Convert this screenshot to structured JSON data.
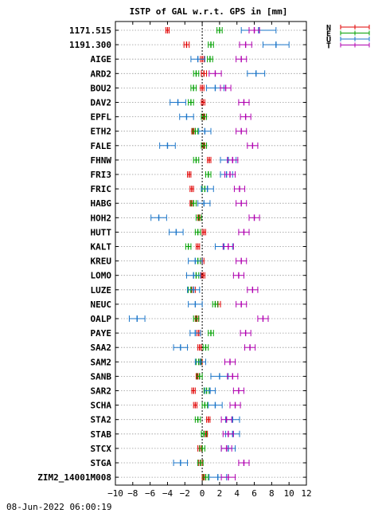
{
  "chart_data": {
    "type": "errorbar",
    "title": "ISTP of GAL w.r.t. GPS in [mm]",
    "timestamp": "08-Jun-2022 06:00:19",
    "xlim": [
      -10,
      12
    ],
    "xticks": [
      -10,
      -8,
      -6,
      -4,
      -2,
      0,
      2,
      4,
      6,
      8,
      10,
      12
    ],
    "grid": "horizontal dotted lines per station; vertical dotted line at 0",
    "legend_position": "top-right",
    "series": [
      {
        "name": "N",
        "color": "#e00000"
      },
      {
        "name": "E",
        "color": "#00a000"
      },
      {
        "name": "U",
        "color": "#1a75c9"
      },
      {
        "name": "T",
        "color": "#b000b0"
      }
    ],
    "stations": [
      {
        "name": "1171.515",
        "N": [
          -4.0,
          0.2
        ],
        "E": [
          2.0,
          0.3
        ],
        "U": [
          6.5,
          2.0
        ],
        "T": [
          6.0,
          0.6
        ]
      },
      {
        "name": "1191.300",
        "N": [
          -1.8,
          0.3
        ],
        "E": [
          1.0,
          0.3
        ],
        "U": [
          8.5,
          1.5
        ],
        "T": [
          5.0,
          0.7
        ]
      },
      {
        "name": "AIGE",
        "N": [
          0.0,
          0.2
        ],
        "E": [
          0.9,
          0.3
        ],
        "U": [
          -0.5,
          0.8
        ],
        "T": [
          4.5,
          0.6
        ]
      },
      {
        "name": "ARD2",
        "N": [
          0.2,
          0.3
        ],
        "E": [
          -0.7,
          0.3
        ],
        "U": [
          6.2,
          1.0
        ],
        "T": [
          1.5,
          0.7
        ]
      },
      {
        "name": "BOU2",
        "N": [
          0.0,
          0.2
        ],
        "E": [
          -1.0,
          0.3
        ],
        "U": [
          1.5,
          1.0
        ],
        "T": [
          2.7,
          0.6
        ]
      },
      {
        "name": "DAV2",
        "N": [
          0.1,
          0.2
        ],
        "E": [
          -1.3,
          0.3
        ],
        "U": [
          -2.8,
          0.9
        ],
        "T": [
          4.8,
          0.6
        ]
      },
      {
        "name": "EPFL",
        "N": [
          0.1,
          0.2
        ],
        "E": [
          0.2,
          0.3
        ],
        "U": [
          -1.8,
          0.8
        ],
        "T": [
          5.0,
          0.6
        ]
      },
      {
        "name": "ETH2",
        "N": [
          -1.0,
          0.2
        ],
        "E": [
          -0.8,
          0.3
        ],
        "U": [
          0.3,
          0.7
        ],
        "T": [
          4.5,
          0.6
        ]
      },
      {
        "name": "FALE",
        "N": [
          0.1,
          0.2
        ],
        "E": [
          0.2,
          0.3
        ],
        "U": [
          -4.0,
          0.9
        ],
        "T": [
          5.8,
          0.6
        ]
      },
      {
        "name": "FHNW",
        "N": [
          0.8,
          0.2
        ],
        "E": [
          -0.7,
          0.3
        ],
        "U": [
          3.0,
          0.9
        ],
        "T": [
          3.5,
          0.6
        ]
      },
      {
        "name": "FRI3",
        "N": [
          -1.5,
          0.2
        ],
        "E": [
          0.7,
          0.3
        ],
        "U": [
          2.8,
          0.7
        ],
        "T": [
          3.2,
          0.6
        ]
      },
      {
        "name": "FRIC",
        "N": [
          -1.2,
          0.2
        ],
        "E": [
          0.3,
          0.3
        ],
        "U": [
          0.6,
          0.7
        ],
        "T": [
          4.3,
          0.6
        ]
      },
      {
        "name": "HABG",
        "N": [
          -1.2,
          0.2
        ],
        "E": [
          -1.0,
          0.3
        ],
        "U": [
          0.2,
          0.7
        ],
        "T": [
          4.5,
          0.6
        ]
      },
      {
        "name": "HOH2",
        "N": [
          -0.3,
          0.2
        ],
        "E": [
          -0.4,
          0.3
        ],
        "U": [
          -5.0,
          0.9
        ],
        "T": [
          6.0,
          0.6
        ]
      },
      {
        "name": "HUTT",
        "N": [
          0.2,
          0.2
        ],
        "E": [
          -0.5,
          0.3
        ],
        "U": [
          -3.0,
          0.8
        ],
        "T": [
          4.8,
          0.6
        ]
      },
      {
        "name": "KALT",
        "N": [
          -0.5,
          0.2
        ],
        "E": [
          -1.6,
          0.3
        ],
        "U": [
          2.5,
          1.0
        ],
        "T": [
          3.0,
          0.6
        ]
      },
      {
        "name": "KREU",
        "N": [
          0.0,
          0.2
        ],
        "E": [
          -0.5,
          0.3
        ],
        "U": [
          -0.8,
          0.8
        ],
        "T": [
          4.5,
          0.6
        ]
      },
      {
        "name": "LOMO",
        "N": [
          0.1,
          0.2
        ],
        "E": [
          -0.7,
          0.3
        ],
        "U": [
          -1.0,
          0.8
        ],
        "T": [
          4.2,
          0.6
        ]
      },
      {
        "name": "LUZE",
        "N": [
          -1.0,
          0.2
        ],
        "E": [
          -1.3,
          0.3
        ],
        "U": [
          -1.0,
          0.7
        ],
        "T": [
          5.8,
          0.6
        ]
      },
      {
        "name": "NEUC",
        "N": [
          1.8,
          0.3
        ],
        "E": [
          1.5,
          0.3
        ],
        "U": [
          -0.8,
          0.8
        ],
        "T": [
          4.5,
          0.6
        ]
      },
      {
        "name": "OALP",
        "N": [
          -0.6,
          0.2
        ],
        "E": [
          -0.7,
          0.3
        ],
        "U": [
          -7.5,
          0.9
        ],
        "T": [
          7.0,
          0.6
        ]
      },
      {
        "name": "PAYE",
        "N": [
          -0.4,
          0.2
        ],
        "E": [
          1.0,
          0.3
        ],
        "U": [
          -0.8,
          0.6
        ],
        "T": [
          5.0,
          0.6
        ]
      },
      {
        "name": "SAA2",
        "N": [
          -0.3,
          0.2
        ],
        "E": [
          0.4,
          0.3
        ],
        "U": [
          -2.5,
          0.8
        ],
        "T": [
          5.5,
          0.6
        ]
      },
      {
        "name": "SAM2",
        "N": [
          -0.2,
          0.2
        ],
        "E": [
          -0.4,
          0.3
        ],
        "U": [
          -0.2,
          0.6
        ],
        "T": [
          3.2,
          0.6
        ]
      },
      {
        "name": "SANB",
        "N": [
          -0.5,
          0.2
        ],
        "E": [
          -0.3,
          0.3
        ],
        "U": [
          2.0,
          1.0
        ],
        "T": [
          3.5,
          0.6
        ]
      },
      {
        "name": "SAR2",
        "N": [
          -1.0,
          0.2
        ],
        "E": [
          0.5,
          0.3
        ],
        "U": [
          0.9,
          0.6
        ],
        "T": [
          4.2,
          0.6
        ]
      },
      {
        "name": "SCHA",
        "N": [
          -0.8,
          0.2
        ],
        "E": [
          0.3,
          0.3
        ],
        "U": [
          1.5,
          0.8
        ],
        "T": [
          3.8,
          0.6
        ]
      },
      {
        "name": "STA2",
        "N": [
          0.7,
          0.2
        ],
        "E": [
          -0.5,
          0.3
        ],
        "U": [
          3.5,
          0.8
        ],
        "T": [
          2.8,
          0.6
        ]
      },
      {
        "name": "STAB",
        "N": [
          0.4,
          0.2
        ],
        "E": [
          0.2,
          0.3
        ],
        "U": [
          3.5,
          0.8
        ],
        "T": [
          3.0,
          0.6
        ]
      },
      {
        "name": "STCX",
        "N": [
          -0.3,
          0.2
        ],
        "E": [
          0.0,
          0.3
        ],
        "U": [
          3.0,
          0.8
        ],
        "T": [
          2.8,
          0.6
        ]
      },
      {
        "name": "STGA",
        "N": [
          -0.2,
          0.2
        ],
        "E": [
          -0.2,
          0.3
        ],
        "U": [
          -2.5,
          0.8
        ],
        "T": [
          4.8,
          0.6
        ]
      },
      {
        "name": "ZIM2_14001M008",
        "N": [
          0.2,
          0.2
        ],
        "E": [
          0.4,
          0.3
        ],
        "U": [
          1.8,
          1.0
        ],
        "T": [
          3.0,
          0.8
        ]
      }
    ]
  }
}
